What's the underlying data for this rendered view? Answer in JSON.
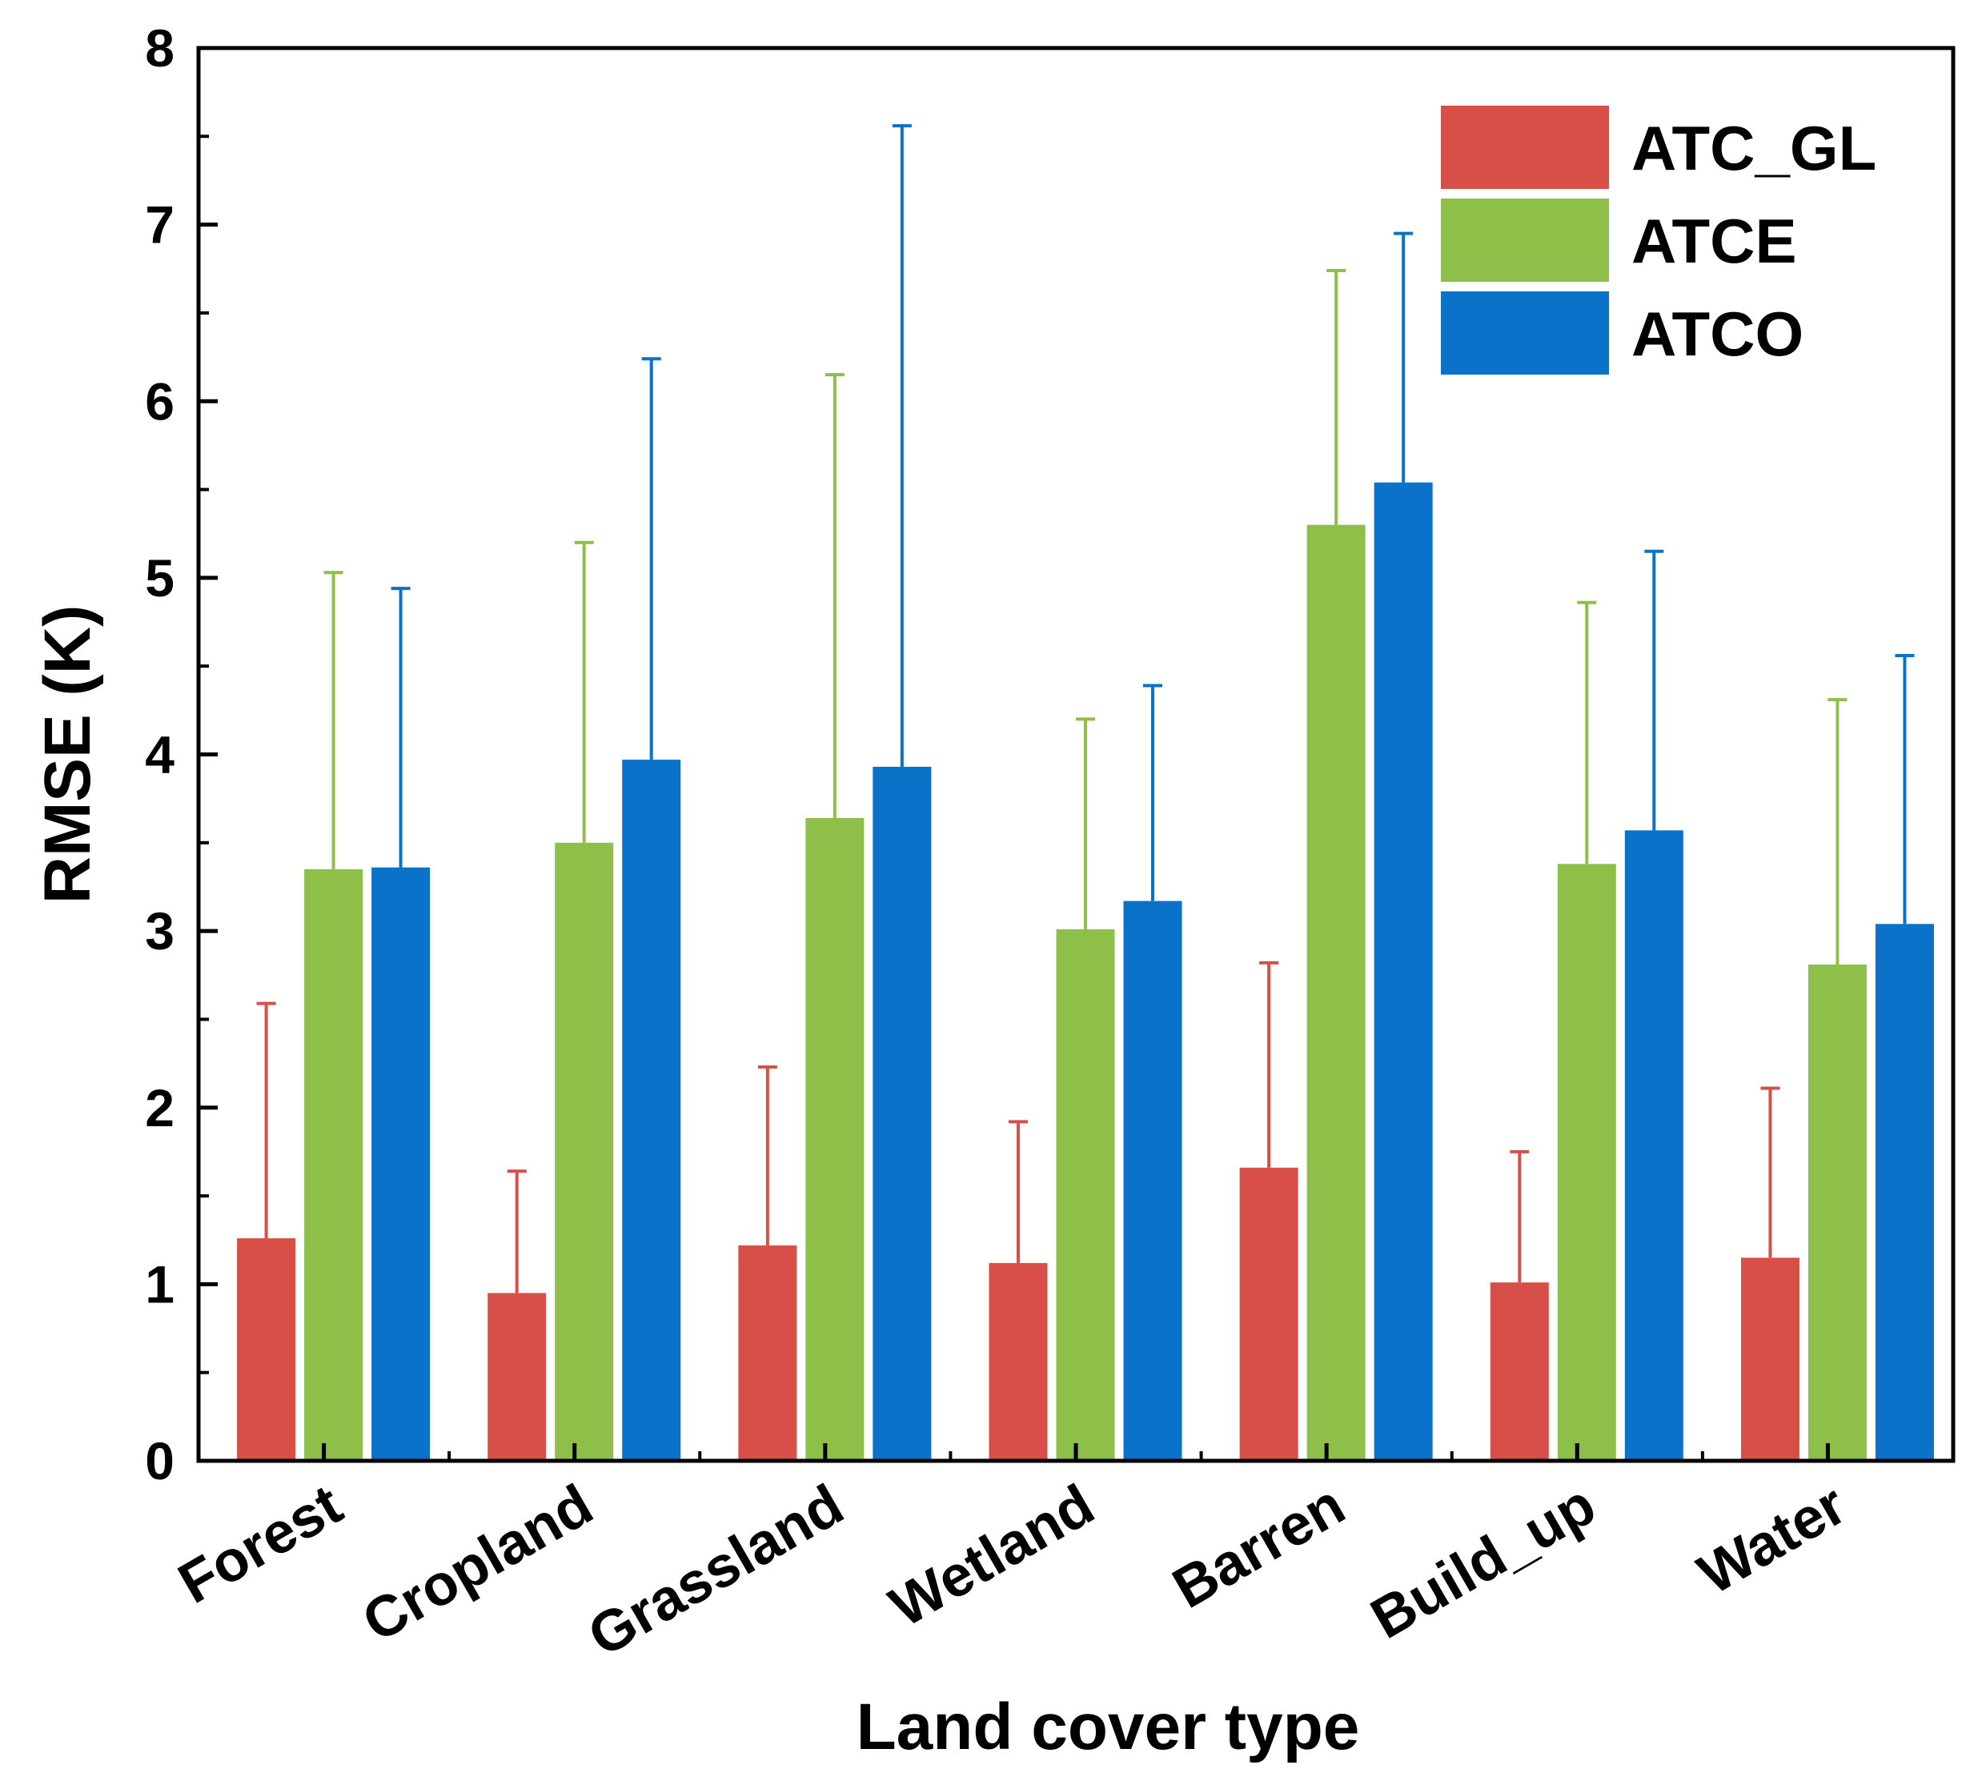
{
  "chart_data": {
    "type": "bar",
    "title": "",
    "xlabel": "Land cover type",
    "ylabel": "RMSE (K)",
    "ylim": [
      0,
      8
    ],
    "yticks": [
      "0",
      "1",
      "2",
      "3",
      "4",
      "5",
      "6",
      "7",
      "8"
    ],
    "categories": [
      "Forest",
      "Cropland",
      "Grassland",
      "Wetland",
      "Barren",
      "Build_up",
      "Water"
    ],
    "series": [
      {
        "name": "ATC_GL",
        "color": "#d84f47",
        "values": [
          1.26,
          0.95,
          1.22,
          1.12,
          1.66,
          1.01,
          1.15
        ],
        "error_top": [
          2.59,
          1.64,
          2.23,
          1.92,
          2.82,
          1.75,
          2.11
        ]
      },
      {
        "name": "ATCE",
        "color": "#8dbf49",
        "values": [
          3.35,
          3.5,
          3.64,
          3.01,
          5.3,
          3.38,
          2.81
        ],
        "error_top": [
          5.03,
          5.2,
          6.15,
          4.2,
          6.74,
          4.86,
          4.31
        ]
      },
      {
        "name": "ATCO",
        "color": "#0a72c8",
        "values": [
          3.36,
          3.97,
          3.93,
          3.17,
          5.54,
          3.57,
          3.04
        ],
        "error_top": [
          4.94,
          6.24,
          7.56,
          4.39,
          6.95,
          5.15,
          4.56
        ]
      }
    ],
    "legend_position": "top-right",
    "grid": false
  }
}
